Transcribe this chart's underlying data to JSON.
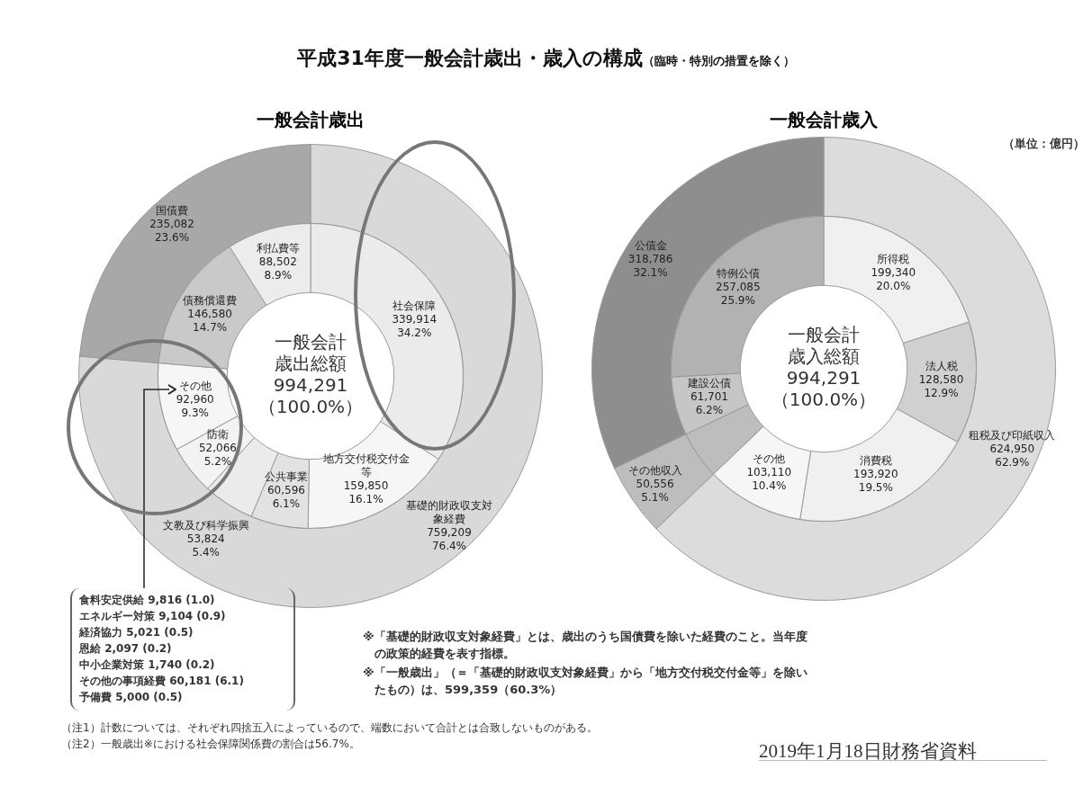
{
  "chart_data": [
    {
      "type": "other",
      "title": "平成31年度一般会計歳出・歳入の構成",
      "subtitle": "（臨時・特別の措置を除く）"
    },
    {
      "type": "donut",
      "title": "一般会計歳出",
      "categories": [
        "基礎的財政収支対象経費",
        "国債費"
      ],
      "values": [
        759209,
        235082
      ],
      "colors": [
        "#d9d9d9",
        "#a8a8a8"
      ],
      "value_labels": [
        "759,209\n76.4%",
        "235,082\n23.6%"
      ]
    },
    {
      "type": "donut",
      "categories": [
        "社会保障",
        "地方交付税交付金等",
        "公共事業",
        "文教及び科学振興",
        "防衛",
        "その他",
        "債務償還費",
        "利払費等"
      ],
      "values": [
        339914,
        159850,
        60596,
        53824,
        52066,
        92960,
        146580,
        88502
      ],
      "colors": [
        "#ebebeb",
        "#f6f6f6",
        "#e2e2e2",
        "#ebebeb",
        "#f3f3f3",
        "#f6f6f6",
        "#c9c9c9",
        "#ececec"
      ],
      "value_labels": [
        "339,914\n34.2%",
        "159,850\n16.1%",
        "60,596\n6.1%",
        "53,824\n5.4%",
        "52,066\n5.2%",
        "92,960\n9.3%",
        "146,580\n14.7%",
        "88,502\n8.9%"
      ],
      "annotations": [
        "一般会計歳出総額",
        "994,291",
        "（100.0%）",
        "食料安定供給 9,816 (1.0)",
        "エネルギー対策 9,104 (0.9)",
        "経済協力 5,021 (0.5)",
        "恩給 2,097 (0.2)",
        "中小企業対策 1,740 (0.2)",
        "その他の事項経費 60,181 (6.1)",
        "予備費 5,000 (0.5)"
      ]
    },
    {
      "type": "donut",
      "title": "一般会計歳入",
      "categories": [
        "租税及び印紙収入",
        "その他収入",
        "公債金"
      ],
      "values": [
        624950,
        50556,
        318786
      ],
      "colors": [
        "#dcdcdc",
        "#bdbdbd",
        "#8e8e8e"
      ],
      "value_labels": [
        "624,950\n62.9%",
        "50,556\n5.1%",
        "318,786\n32.1%"
      ],
      "annotations": [
        "（単位：億円）"
      ]
    },
    {
      "type": "donut",
      "categories": [
        "所得税",
        "法人税",
        "消費税",
        "その他",
        null,
        "建設公債",
        "特例公債"
      ],
      "values": [
        199340,
        128580,
        193920,
        103110,
        50556,
        61701,
        257085
      ],
      "colors": [
        "#f0f0f0",
        "#d0d0d0",
        "#f0f0f0",
        "#f6f6f6",
        "#bdbdbd",
        "#c6c6c6",
        "#b2b2b2"
      ],
      "value_labels": [
        "199,340\n20.0%",
        "128,580\n12.9%",
        "193,920\n19.5%",
        "103,110\n10.4%",
        null,
        "61,701\n6.2%",
        "257,085\n25.9%"
      ],
      "annotations": [
        "一般会計歳入総額",
        "994,291",
        "（100.0%）"
      ]
    },
    {
      "type": "other",
      "annotations": [
        "※「基礎的財政収支対象経費」とは、歳出のうち国債費を除いた経費のこと。当年度の政策的経費を表す指標。",
        "※「一般歳出」（＝「基礎的財政収支対象経費」から「地方交付税交付金等」を除いたもの）は、599,359（60.3%）",
        "（注1）計数については、それぞれ四捨五入によっているので、端数において合計とは合致しないものがある。",
        "（注2）一般歳出※における社会保障関係費の割合は56.7%。",
        "2019年1月18日財務省資料"
      ]
    }
  ]
}
